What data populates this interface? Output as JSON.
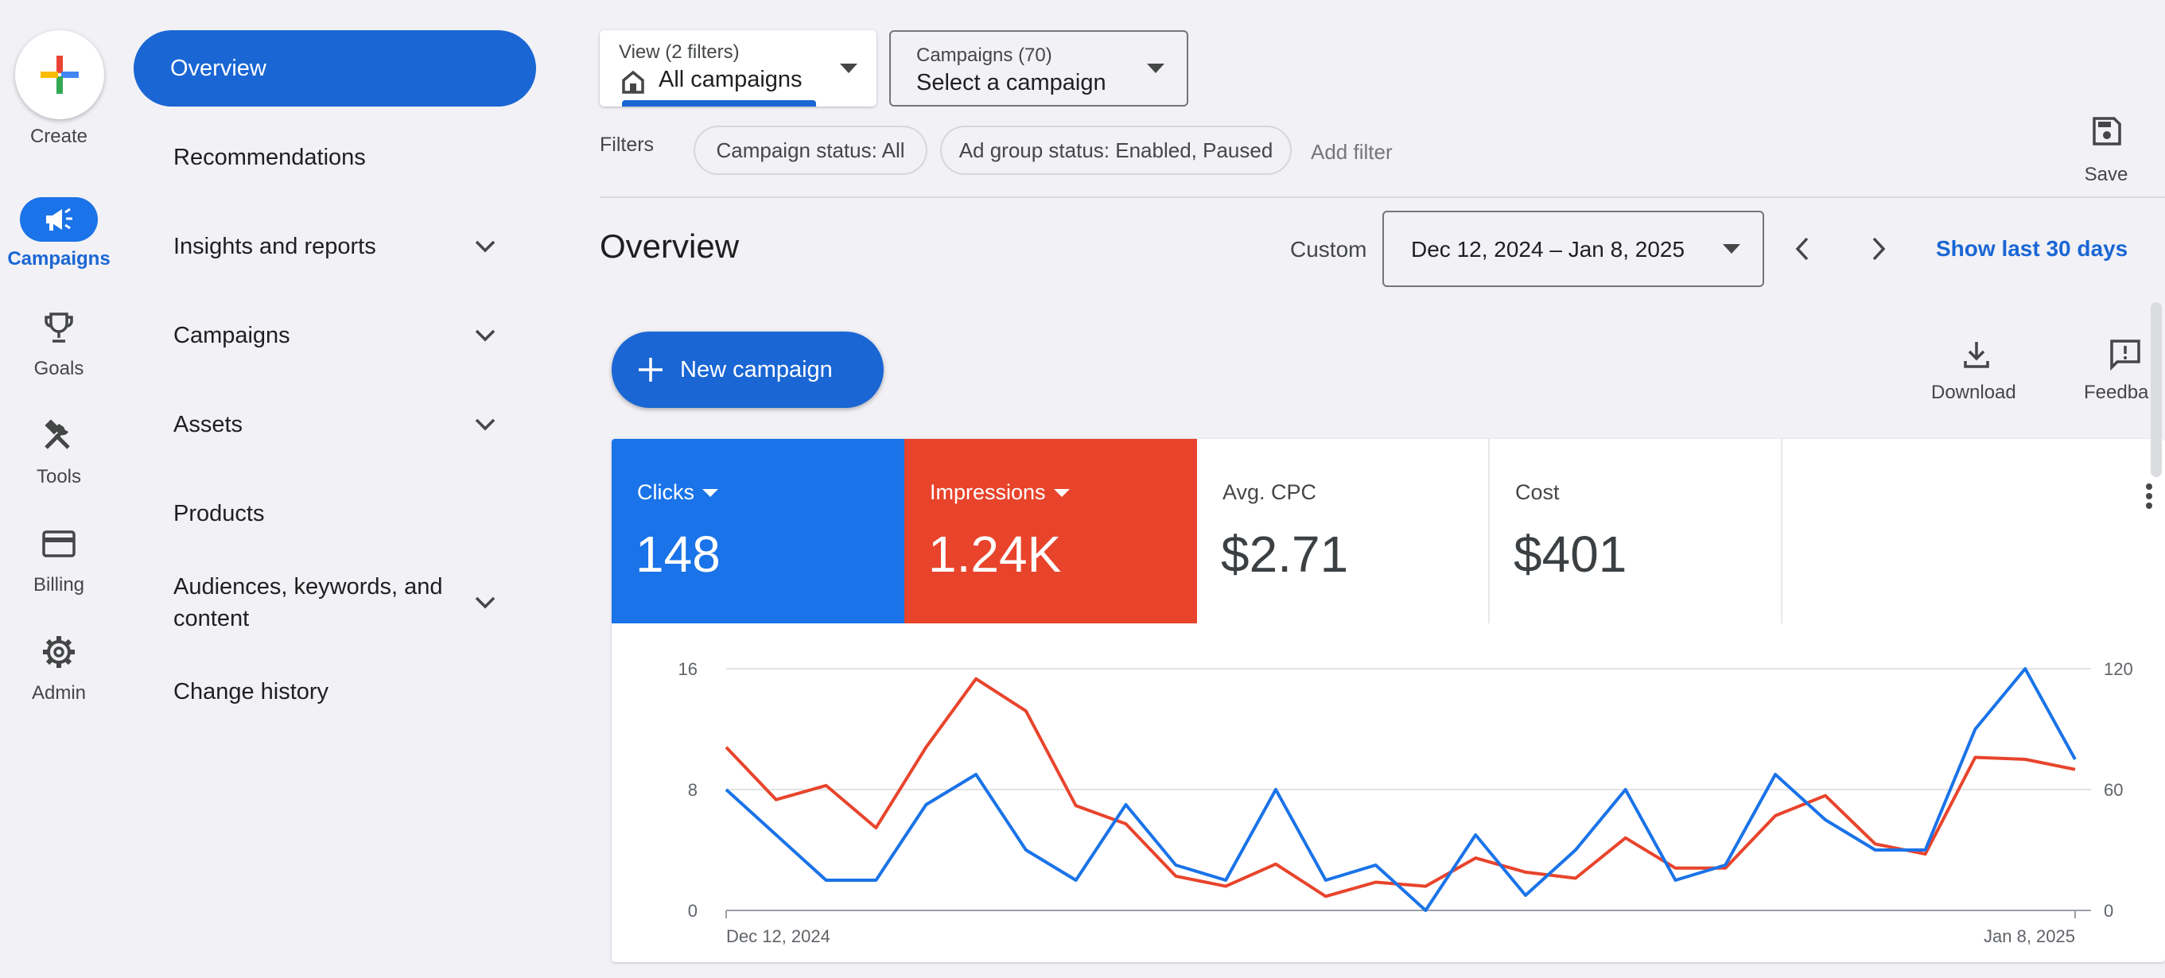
{
  "rail": {
    "create_label": "Create",
    "items": [
      {
        "label": "Campaigns",
        "icon": "megaphone-icon"
      },
      {
        "label": "Goals",
        "icon": "trophy-icon"
      },
      {
        "label": "Tools",
        "icon": "tools-icon"
      },
      {
        "label": "Billing",
        "icon": "credit-card-icon"
      },
      {
        "label": "Admin",
        "icon": "gear-icon"
      }
    ]
  },
  "nav": {
    "items": [
      {
        "label": "Overview"
      },
      {
        "label": "Recommendations"
      },
      {
        "label": "Insights and reports"
      },
      {
        "label": "Campaigns"
      },
      {
        "label": "Assets"
      },
      {
        "label": "Products"
      },
      {
        "label": "Audiences, keywords, and content"
      },
      {
        "label": "Change history"
      }
    ]
  },
  "toolbar": {
    "view_small": "View (2 filters)",
    "view_value": "All campaigns",
    "campaigns_small": "Campaigns (70)",
    "campaigns_value": "Select a campaign",
    "filters_label": "Filters",
    "chips": [
      "Campaign status: All",
      "Ad group status: Enabled, Paused"
    ],
    "add_filter": "Add filter",
    "save_label": "Save"
  },
  "overview": {
    "title": "Overview",
    "custom_label": "Custom",
    "date_range": "Dec 12, 2024 – Jan 8, 2025",
    "show_last": "Show last 30 days",
    "new_campaign": "New campaign",
    "download": "Download",
    "feedback": "Feedba"
  },
  "metrics": [
    {
      "name": "Clicks",
      "value": "148",
      "color": "#1a73e8"
    },
    {
      "name": "Impressions",
      "value": "1.24K",
      "color": "#e8442c"
    },
    {
      "name": "Avg. CPC",
      "value": "$2.71"
    },
    {
      "name": "Cost",
      "value": "$401"
    }
  ],
  "chart_data": {
    "type": "line",
    "x_start_label": "Dec 12, 2024",
    "x_end_label": "Jan 8, 2025",
    "left_axis": {
      "ticks": [
        "0",
        "8",
        "16"
      ],
      "ylim": [
        0,
        16
      ]
    },
    "right_axis": {
      "ticks": [
        "0",
        "60",
        "120"
      ],
      "ylim": [
        0,
        120
      ]
    },
    "series": [
      {
        "name": "Clicks",
        "axis": "left",
        "color": "#1a73e8",
        "values": [
          8,
          5,
          2,
          2,
          7,
          9,
          4,
          2,
          7,
          3,
          2,
          8,
          2,
          3,
          0,
          5,
          1,
          4,
          8,
          2,
          3,
          9,
          6,
          4,
          4,
          12,
          16,
          10
        ]
      },
      {
        "name": "Impressions",
        "axis": "right",
        "color": "#e8442c",
        "values": [
          81,
          55,
          62,
          41,
          81,
          115,
          99,
          52,
          43,
          17,
          12,
          23,
          7,
          14,
          12,
          26,
          19,
          16,
          36,
          21,
          21,
          47,
          57,
          33,
          28,
          76,
          75,
          70
        ]
      }
    ]
  }
}
